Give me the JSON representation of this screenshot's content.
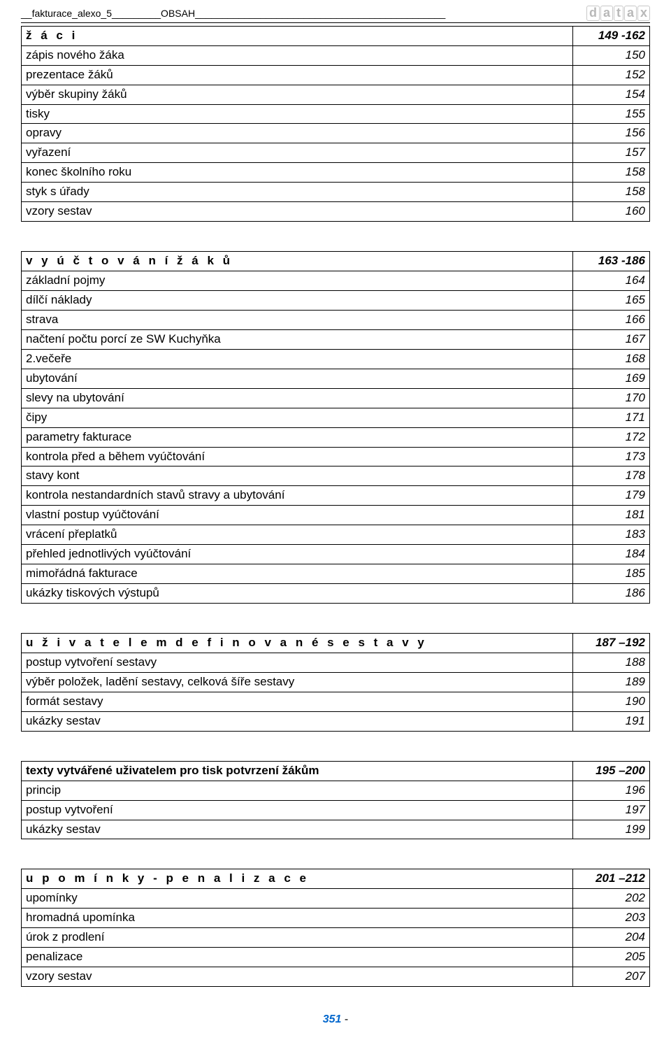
{
  "header": {
    "left": "__fakturace_alexo_5_________OBSAH______________________________________________"
  },
  "logo": [
    "d",
    "a",
    "t",
    "a",
    "x"
  ],
  "blocks": [
    {
      "rows": [
        {
          "cls": "section",
          "label": "ž á c i",
          "page": "149 -162"
        },
        {
          "label": "zápis nového žáka",
          "page": "150"
        },
        {
          "label": "prezentace žáků",
          "page": "152"
        },
        {
          "label": "výběr skupiny žáků",
          "page": "154"
        },
        {
          "label": "tisky",
          "page": "155"
        },
        {
          "label": "opravy",
          "page": "156"
        },
        {
          "label": "vyřazení",
          "page": "157"
        },
        {
          "label": "konec školního roku",
          "page": "158"
        },
        {
          "label": "styk s úřady",
          "page": "158"
        },
        {
          "label": "vzory sestav",
          "page": "160"
        }
      ]
    },
    {
      "rows": [
        {
          "cls": "section",
          "label": "v y ú č t o v á n í    ž á k ů",
          "page": "163 -186"
        },
        {
          "label": "základní pojmy",
          "page": "164"
        },
        {
          "label": "dílčí náklady",
          "page": "165"
        },
        {
          "label": "strava",
          "page": "166"
        },
        {
          "label": "načtení počtu porcí ze SW Kuchyňka",
          "page": "167"
        },
        {
          "label": "2.večeře",
          "page": "168"
        },
        {
          "label": "ubytování",
          "page": "169"
        },
        {
          "label": "slevy na ubytování",
          "page": "170"
        },
        {
          "label": "čipy",
          "page": "171"
        },
        {
          "label": "parametry fakturace",
          "page": "172"
        },
        {
          "label": "kontrola před a během vyúčtování",
          "page": "173"
        },
        {
          "label": "stavy kont",
          "page": "178"
        },
        {
          "label": "kontrola nestandardních stavů stravy a ubytování",
          "page": "179"
        },
        {
          "label": "vlastní postup vyúčtování",
          "page": "181"
        },
        {
          "label": "vrácení přeplatků",
          "page": "183"
        },
        {
          "label": "přehled jednotlivých vyúčtování",
          "page": "184"
        },
        {
          "label": "mimořádná fakturace",
          "page": "185"
        },
        {
          "label": "ukázky tiskových výstupů",
          "page": "186"
        }
      ]
    },
    {
      "rows": [
        {
          "cls": "section",
          "label": "u ž i v a t e l e m    d e f i n o v a n é    s e s t a v y",
          "page": "187 –192"
        },
        {
          "label": "postup vytvoření sestavy",
          "page": "188"
        },
        {
          "label": "výběr položek, ladění sestavy, celková šíře sestavy",
          "page": "189"
        },
        {
          "label": "formát  sestavy",
          "page": "190"
        },
        {
          "label": "ukázky sestav",
          "page": "191"
        }
      ]
    },
    {
      "rows": [
        {
          "cls": "section-bold",
          "label": "texty vytvářené uživatelem pro tisk potvrzení žákům",
          "page": "195 –200"
        },
        {
          "label": "princip",
          "page": "196"
        },
        {
          "label": "postup  vytvoření",
          "page": "197"
        },
        {
          "label": "ukázky sestav",
          "page": "199"
        }
      ]
    },
    {
      "rows": [
        {
          "cls": "section",
          "label": "u p o m í n k y    -    p e n a l i z a c e",
          "page": "201 –212"
        },
        {
          "label": "upomínky",
          "page": "202"
        },
        {
          "label": "hromadná upomínka",
          "page": "203"
        },
        {
          "label": "úrok z prodlení",
          "page": "204"
        },
        {
          "label": "penalizace",
          "page": "205"
        },
        {
          "label": "vzory sestav",
          "page": "207"
        }
      ]
    }
  ],
  "footer": {
    "page": "351",
    "dash": "  -"
  }
}
